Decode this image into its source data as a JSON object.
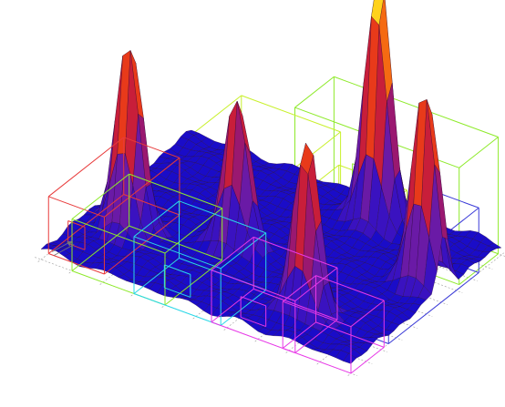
{
  "chart_data": {
    "type": "surface",
    "title": "",
    "grid_resolution": [
      40,
      28
    ],
    "peaks": [
      {
        "x": 0.14,
        "y": 0.3,
        "z": 0.78
      },
      {
        "x": 0.66,
        "y": 0.88,
        "z": 1.0
      },
      {
        "x": 0.42,
        "y": 0.44,
        "z": 0.6
      },
      {
        "x": 0.94,
        "y": 0.62,
        "z": 0.8
      },
      {
        "x": 0.76,
        "y": 0.2,
        "z": 0.7
      }
    ],
    "floor_level": 0.04,
    "colormap": [
      "#1a0cc8",
      "#3a12c0",
      "#6a1aa6",
      "#9a1870",
      "#c81e3a",
      "#e83a1a",
      "#f56a12",
      "#fba018",
      "#ffd21c",
      "#fff040"
    ],
    "room_outlines": [
      {
        "color": "#8eea2a",
        "x0": 0.46,
        "x1": 0.99,
        "y0": 0.74,
        "y1": 1.0,
        "h": 0.45,
        "window": true
      },
      {
        "color": "#c8f02a",
        "x0": 0.2,
        "x1": 0.52,
        "y0": 0.55,
        "y1": 0.92,
        "h": 0.3
      },
      {
        "color": "#c8f02a",
        "x0": 0.5,
        "x1": 0.72,
        "y0": 0.7,
        "y1": 0.95,
        "h": 0.15,
        "window": true
      },
      {
        "color": "#3b3bd8",
        "x0": 0.84,
        "x1": 1.0,
        "y0": 0.25,
        "y1": 0.85,
        "h": 0.25
      },
      {
        "color": "#e83a3a",
        "x0": 0.0,
        "x1": 0.18,
        "y0": 0.05,
        "y1": 0.55,
        "h": 0.22,
        "window": true
      },
      {
        "color": "#8eea2a",
        "x0": 0.1,
        "x1": 0.4,
        "y0": 0.0,
        "y1": 0.38,
        "h": 0.2
      },
      {
        "color": "#2ad8e8",
        "x0": 0.3,
        "x1": 0.58,
        "y0": 0.0,
        "y1": 0.3,
        "h": 0.22,
        "window": true
      },
      {
        "color": "#e838e8",
        "x0": 0.55,
        "x1": 0.82,
        "y0": 0.0,
        "y1": 0.28,
        "h": 0.2,
        "window": true
      },
      {
        "color": "#e838e8",
        "x0": 0.78,
        "x1": 1.0,
        "y0": 0.0,
        "y1": 0.22,
        "h": 0.18
      }
    ],
    "grid_on": true
  }
}
